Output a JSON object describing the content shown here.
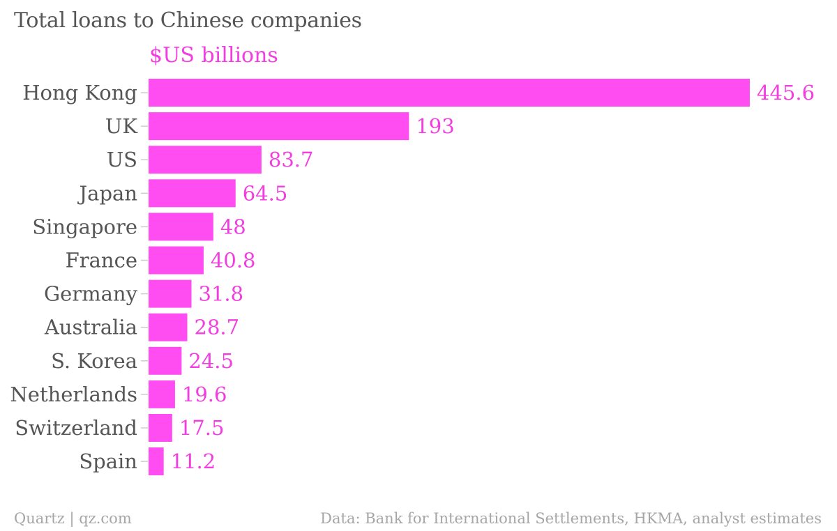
{
  "colors": {
    "bar": "#ff4df2",
    "value_label": "#f23de0",
    "category_label": "#555555",
    "title": "#555555",
    "footer": "#a6a6a6",
    "tick": "#cccccc"
  },
  "chart_data": {
    "type": "bar",
    "orientation": "horizontal",
    "title": "Total loans to Chinese companies",
    "subtitle": "$US billions",
    "categories": [
      "Hong Kong",
      "UK",
      "US",
      "Japan",
      "Singapore",
      "France",
      "Germany",
      "Australia",
      "S. Korea",
      "Netherlands",
      "Switzerland",
      "Spain"
    ],
    "values": [
      445.6,
      193,
      83.7,
      64.5,
      48,
      40.8,
      31.8,
      28.7,
      24.5,
      19.6,
      17.5,
      11.2
    ],
    "value_labels": [
      "445.6",
      "193",
      "83.7",
      "64.5",
      "48",
      "40.8",
      "31.8",
      "28.7",
      "24.5",
      "19.6",
      "17.5",
      "11.2"
    ],
    "xlim": [
      0,
      445.6
    ],
    "grid": false,
    "legend": "none"
  },
  "footer": {
    "source_brand": "Quartz | qz.com",
    "data_source": "Data: Bank for International Settlements, HKMA, analyst estimates"
  }
}
